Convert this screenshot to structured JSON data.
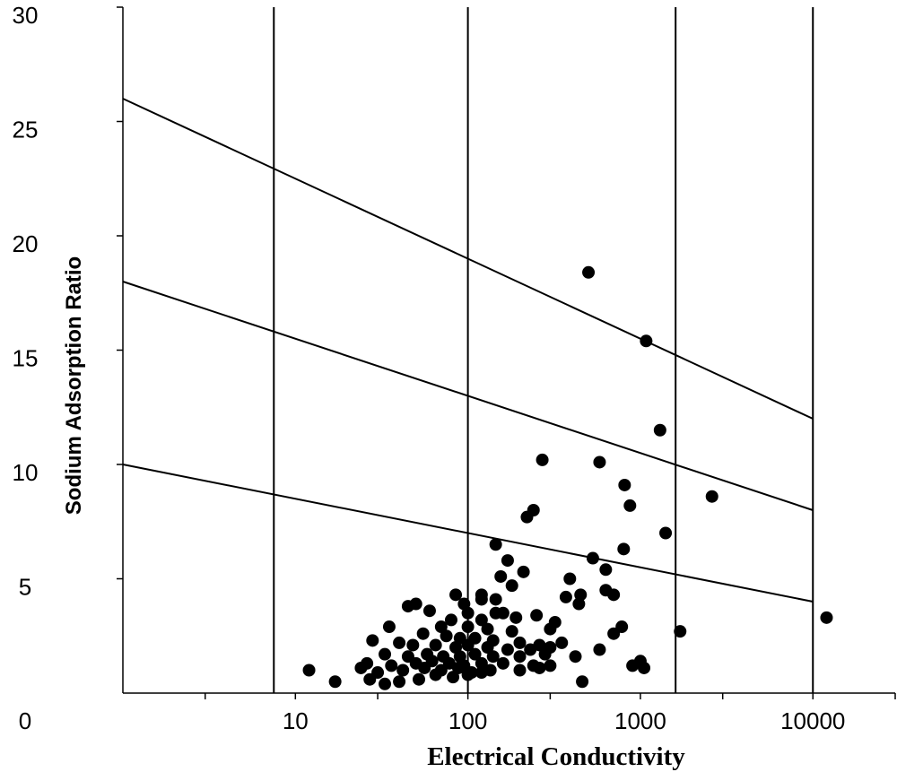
{
  "chart_data": {
    "type": "scatter",
    "title": "",
    "xlabel": "Electrical Conductivity",
    "ylabel": "Sodium Adsorption Ratio",
    "x_scale": "log",
    "xlim": [
      1,
      30000
    ],
    "ylim": [
      0,
      30
    ],
    "x_ticks": [
      10,
      100,
      1000,
      10000
    ],
    "x_tick_labels": [
      "10",
      "100",
      "1000",
      "10000"
    ],
    "y_ticks": [
      0,
      5,
      10,
      15,
      20,
      25,
      30
    ],
    "y_tick_labels": [
      "0",
      "5",
      "10",
      "15",
      "20",
      "25",
      "30"
    ],
    "grid": false,
    "vertical_lines_x": [
      7.5,
      100,
      1600,
      10000
    ],
    "boundary_lines": [
      {
        "x": [
          1,
          10000
        ],
        "y": [
          26,
          12
        ]
      },
      {
        "x": [
          1,
          10000
        ],
        "y": [
          18,
          8
        ]
      },
      {
        "x": [
          1,
          10000
        ],
        "y": [
          10,
          4
        ]
      }
    ],
    "series": [
      {
        "points": [
          [
            500,
            18.4
          ],
          [
            1080,
            15.4
          ],
          [
            1300,
            11.5
          ],
          [
            270,
            10.2
          ],
          [
            580,
            10.1
          ],
          [
            810,
            9.1
          ],
          [
            2600,
            8.6
          ],
          [
            870,
            8.2
          ],
          [
            240,
            8
          ],
          [
            220,
            7.7
          ],
          [
            1400,
            7
          ],
          [
            145,
            6.5
          ],
          [
            800,
            6.3
          ],
          [
            530,
            5.9
          ],
          [
            170,
            5.8
          ],
          [
            630,
            5.4
          ],
          [
            210,
            5.3
          ],
          [
            155,
            5.1
          ],
          [
            390,
            5
          ],
          [
            180,
            4.7
          ],
          [
            630,
            4.5
          ],
          [
            45,
            3.8
          ],
          [
            120,
            4.3
          ],
          [
            85,
            4.3
          ],
          [
            450,
            4.3
          ],
          [
            700,
            4.3
          ],
          [
            370,
            4.2
          ],
          [
            120,
            4.1
          ],
          [
            145,
            4.1
          ],
          [
            50,
            3.9
          ],
          [
            95,
            3.9
          ],
          [
            440,
            3.9
          ],
          [
            60,
            3.6
          ],
          [
            100,
            3.5
          ],
          [
            145,
            3.5
          ],
          [
            160,
            3.5
          ],
          [
            190,
            3.3
          ],
          [
            250,
            3.4
          ],
          [
            80,
            3.2
          ],
          [
            120,
            3.2
          ],
          [
            320,
            3.1
          ],
          [
            12000,
            3.3
          ],
          [
            35,
            2.9
          ],
          [
            70,
            2.9
          ],
          [
            100,
            2.9
          ],
          [
            130,
            2.8
          ],
          [
            180,
            2.7
          ],
          [
            300,
            2.8
          ],
          [
            780,
            2.9
          ],
          [
            1700,
            2.7
          ],
          [
            55,
            2.6
          ],
          [
            75,
            2.5
          ],
          [
            90,
            2.4
          ],
          [
            110,
            2.4
          ],
          [
            140,
            2.3
          ],
          [
            200,
            2.2
          ],
          [
            260,
            2.1
          ],
          [
            350,
            2.2
          ],
          [
            700,
            2.6
          ],
          [
            28,
            2.3
          ],
          [
            40,
            2.2
          ],
          [
            48,
            2.1
          ],
          [
            65,
            2.1
          ],
          [
            85,
            2
          ],
          [
            100,
            2.1
          ],
          [
            130,
            2
          ],
          [
            170,
            1.9
          ],
          [
            230,
            1.9
          ],
          [
            300,
            2
          ],
          [
            580,
            1.9
          ],
          [
            33,
            1.7
          ],
          [
            45,
            1.6
          ],
          [
            58,
            1.7
          ],
          [
            72,
            1.6
          ],
          [
            90,
            1.6
          ],
          [
            110,
            1.7
          ],
          [
            140,
            1.6
          ],
          [
            200,
            1.6
          ],
          [
            280,
            1.7
          ],
          [
            420,
            1.6
          ],
          [
            26,
            1.3
          ],
          [
            36,
            1.2
          ],
          [
            50,
            1.3
          ],
          [
            62,
            1.4
          ],
          [
            78,
            1.3
          ],
          [
            95,
            1.2
          ],
          [
            120,
            1.3
          ],
          [
            160,
            1.3
          ],
          [
            240,
            1.2
          ],
          [
            1000,
            1.4
          ],
          [
            12,
            1
          ],
          [
            24,
            1.1
          ],
          [
            30,
            0.9
          ],
          [
            42,
            1
          ],
          [
            56,
            1.1
          ],
          [
            70,
            1
          ],
          [
            88,
            1.1
          ],
          [
            105,
            0.9
          ],
          [
            135,
            1
          ],
          [
            260,
            1.1
          ],
          [
            900,
            1.2
          ],
          [
            1050,
            1.1
          ],
          [
            17,
            0.5
          ],
          [
            27,
            0.6
          ],
          [
            33,
            0.4
          ],
          [
            40,
            0.5
          ],
          [
            52,
            0.6
          ],
          [
            65,
            0.8
          ],
          [
            82,
            0.7
          ],
          [
            100,
            0.8
          ],
          [
            120,
            0.9
          ],
          [
            200,
            1
          ],
          [
            300,
            1.2
          ],
          [
            460,
            0.5
          ]
        ]
      }
    ]
  }
}
